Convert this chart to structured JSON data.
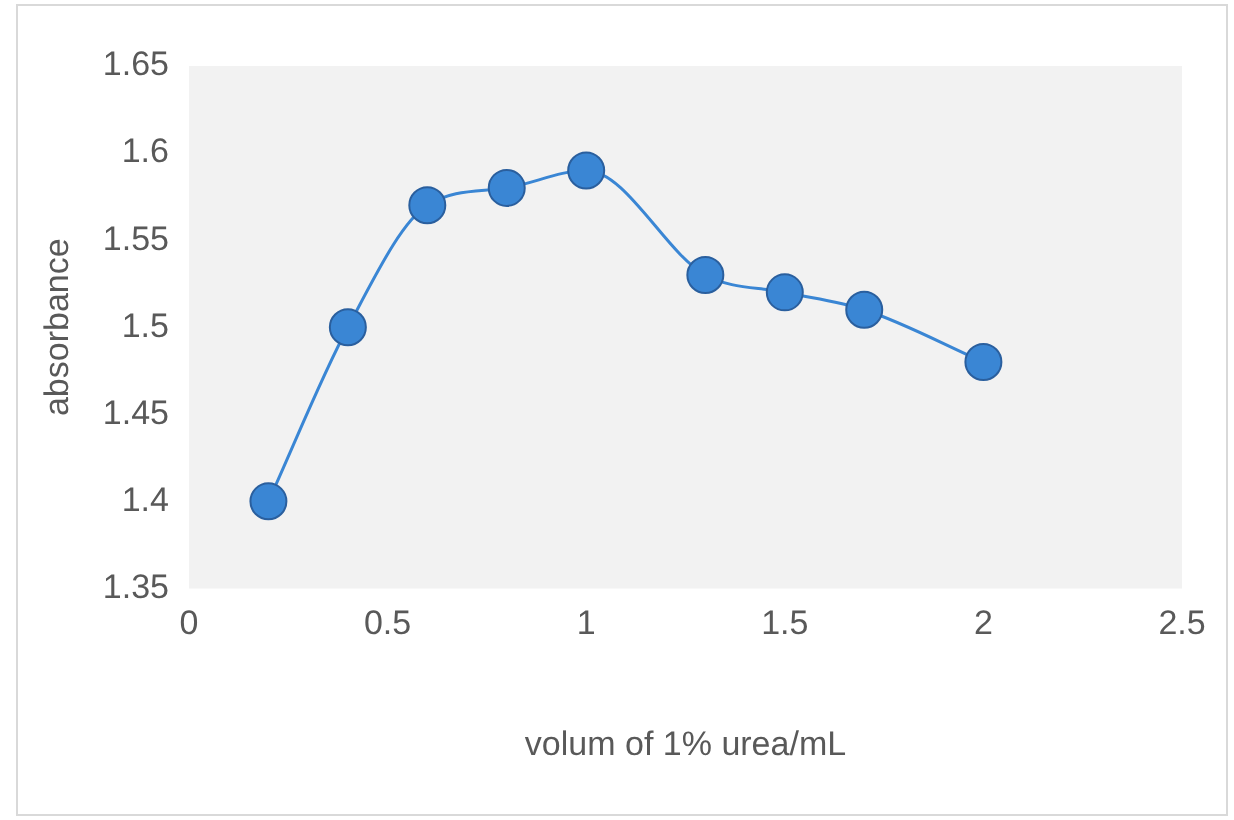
{
  "chart_data": {
    "type": "line",
    "xlabel": "volum of 1% urea/mL",
    "ylabel": "absorbance",
    "x": [
      0.2,
      0.4,
      0.6,
      0.8,
      1,
      1.3,
      1.5,
      1.7,
      2
    ],
    "series": [
      {
        "color": "#3a86d4",
        "values": [
          1.4,
          1.5,
          1.57,
          1.58,
          1.59,
          1.53,
          1.52,
          1.51,
          1.48
        ]
      }
    ],
    "xlim": [
      0,
      2.5
    ],
    "xticks": [
      0,
      0.5,
      1,
      1.5,
      2,
      2.5
    ],
    "ylim": [
      1.35,
      1.65
    ],
    "yticks": [
      1.35,
      1.4,
      1.45,
      1.5,
      1.55,
      1.6,
      1.65
    ],
    "grid": false,
    "legend": false,
    "marker": "circle",
    "line_style": "solid"
  }
}
